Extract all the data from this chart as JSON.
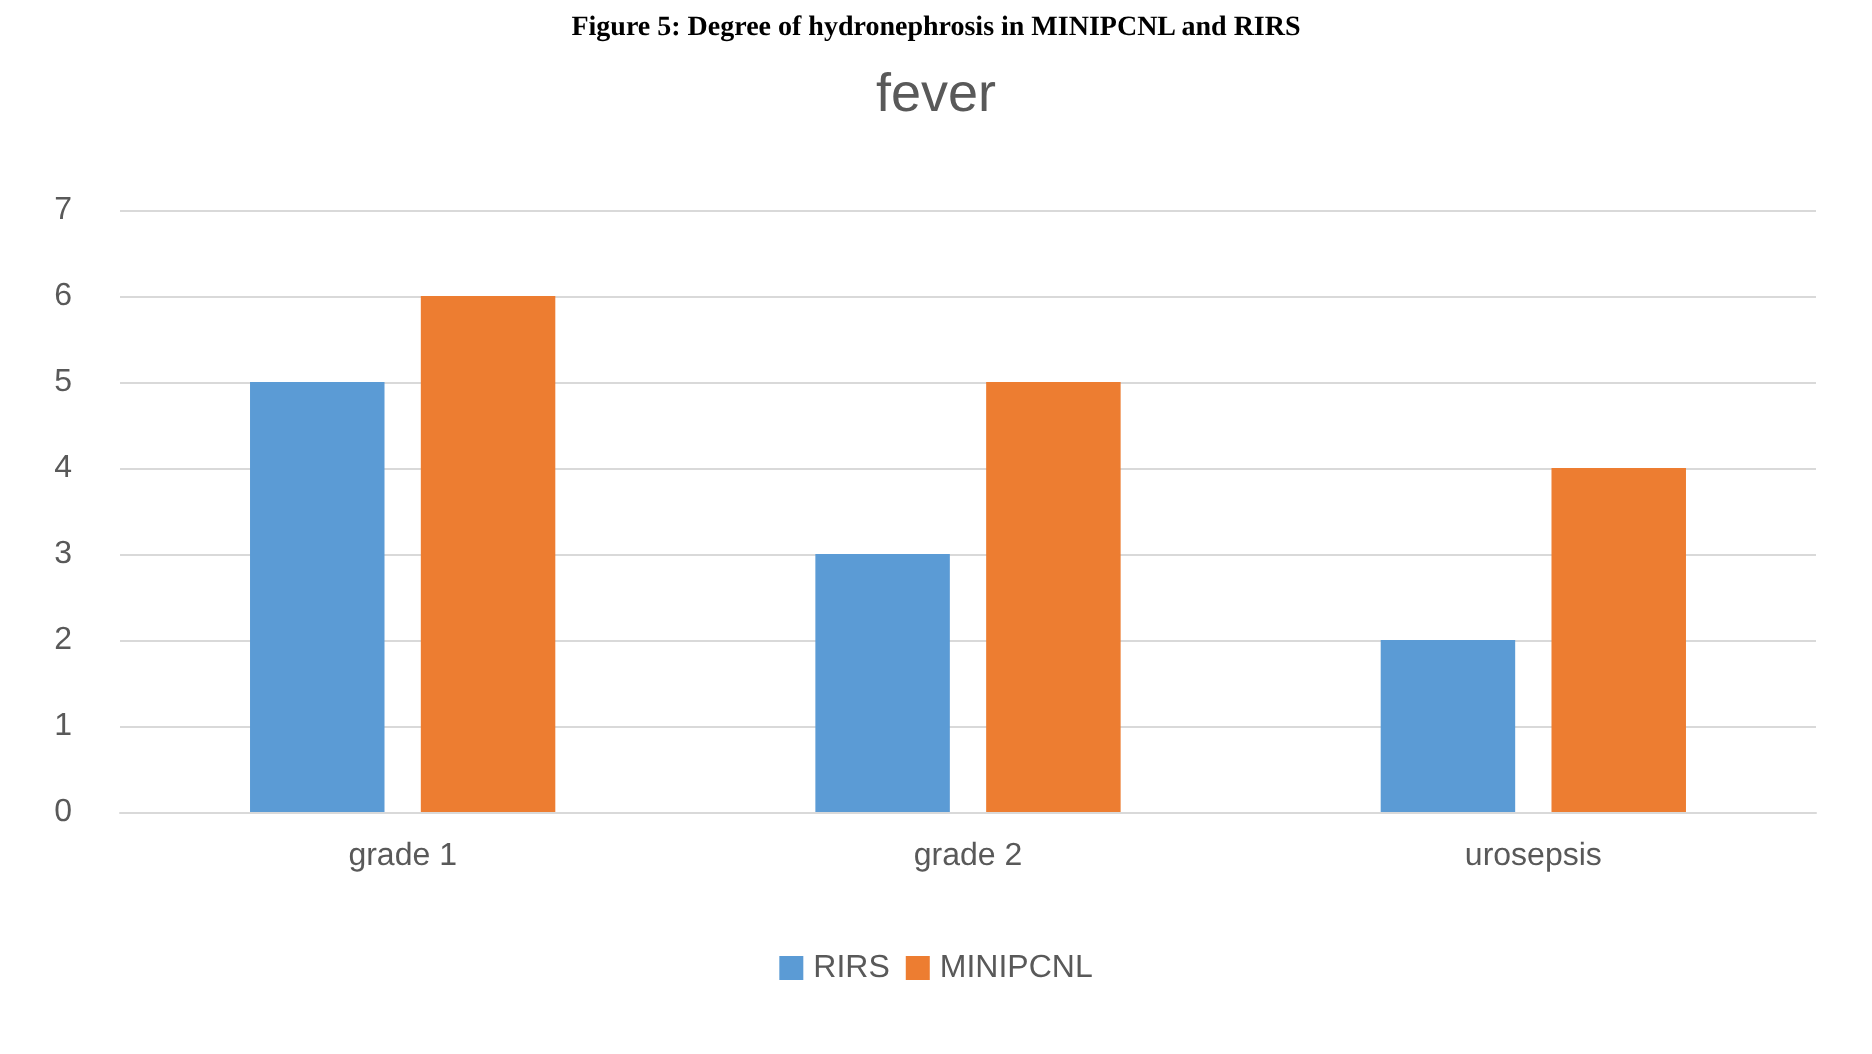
{
  "chart_data": {
    "type": "bar",
    "title": "fever",
    "annotations": [
      "Figure 5: Degree of hydronephrosis in MINIPCNL and RIRS"
    ],
    "categories": [
      "grade 1",
      "grade 2",
      "urosepsis"
    ],
    "series": [
      {
        "name": "RIRS",
        "color": "#5b9bd5",
        "values": [
          5,
          3,
          2
        ]
      },
      {
        "name": "MINIPCNL",
        "color": "#ed7d31",
        "values": [
          6,
          5,
          4
        ]
      }
    ],
    "ylim": [
      0,
      7
    ],
    "yticks": [
      0,
      1,
      2,
      3,
      4,
      5,
      6,
      7
    ],
    "grid": "y",
    "legend": "bottom"
  }
}
